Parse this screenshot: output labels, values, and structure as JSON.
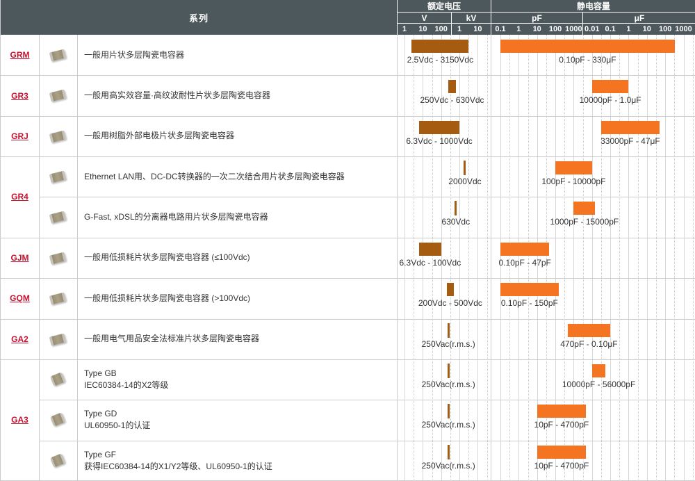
{
  "header": {
    "series": "系列",
    "rated_voltage": "额定电压",
    "capacitance": "静电容量"
  },
  "colors": {
    "header_bg": "#4d585c",
    "series_link": "#c8102e",
    "voltage_bar": "#a55c10",
    "capacitance_bar": "#f57421",
    "grid_major": "#d8d8d8",
    "grid_minor": "#cdcdcd",
    "border": "#cccccc",
    "text": "#333333"
  },
  "chart_data": {
    "type": "table",
    "title": "MLCC series selection chart: rated voltage and capacitance ranges (log scales)",
    "voltage_axis": {
      "scale": "log",
      "sections": [
        {
          "unit": "V",
          "multiplier_v": 1,
          "ticks": [
            "1",
            "10",
            "100"
          ]
        },
        {
          "unit": "kV",
          "multiplier_v": 1000,
          "ticks": [
            "1",
            "10"
          ]
        }
      ]
    },
    "capacitance_axis": {
      "scale": "log",
      "sections": [
        {
          "unit": "pF",
          "multiplier_pf": 1,
          "ticks": [
            "0.1",
            "1",
            "10",
            "100",
            "1000"
          ]
        },
        {
          "unit": "μF",
          "multiplier_pf": 1000000,
          "ticks": [
            "0.01",
            "0.1",
            "1",
            "10",
            "100",
            "1000"
          ]
        }
      ]
    },
    "groups": [
      {
        "series": "GRM",
        "chip": "cylinder",
        "rows": [
          {
            "description": [
              "一般用片状多层陶瓷电容器"
            ],
            "voltage_v": [
              2.5,
              3150
            ],
            "voltage_label": "2.5Vdc - 3150Vdc",
            "cap_pf": [
              0.1,
              330000000
            ],
            "cap_label": "0.10pF - 330μF"
          }
        ]
      },
      {
        "series": "GR3",
        "chip": "cylinder",
        "rows": [
          {
            "description": [
              "一般用高实效容量·高纹波耐性片状多层陶瓷电容器"
            ],
            "voltage_v": [
              250,
              630
            ],
            "voltage_label": "250Vdc - 630Vdc",
            "cap_pf": [
              10000,
              1000000
            ],
            "cap_label": "10000pF - 1.0μF"
          }
        ]
      },
      {
        "series": "GRJ",
        "chip": "cylinder",
        "rows": [
          {
            "description": [
              "一般用树脂外部电极片状多层陶瓷电容器"
            ],
            "voltage_v": [
              6.3,
              1000
            ],
            "voltage_label": "6.3Vdc - 1000Vdc",
            "cap_pf": [
              33000,
              47000000
            ],
            "cap_label": "33000pF - 47μF"
          }
        ]
      },
      {
        "series": "GR4",
        "chip": "cylinder",
        "rows": [
          {
            "description": [
              "Ethernet LAN用、DC-DC转换器的一次二次结合用片状多层陶瓷电容器"
            ],
            "voltage_v": [
              2000,
              2000
            ],
            "voltage_label": "2000Vdc",
            "cap_pf": [
              100,
              10000
            ],
            "cap_label": "100pF - 10000pF"
          },
          {
            "description": [
              "G-Fast, xDSL的分离器电路用片状多层陶瓷电容器"
            ],
            "voltage_v": [
              630,
              630
            ],
            "voltage_label": "630Vdc",
            "cap_pf": [
              1000,
              15000
            ],
            "cap_label": "1000pF - 15000pF"
          }
        ]
      },
      {
        "series": "GJM",
        "chip": "cylinder",
        "rows": [
          {
            "description": [
              "一般用低损耗片状多层陶瓷电容器 (≤100Vdc)"
            ],
            "voltage_v": [
              6.3,
              100
            ],
            "voltage_label": "6.3Vdc - 100Vdc",
            "cap_pf": [
              0.1,
              47
            ],
            "cap_label": "0.10pF - 47pF"
          }
        ]
      },
      {
        "series": "GQM",
        "chip": "cylinder",
        "rows": [
          {
            "description": [
              "一般用低损耗片状多层陶瓷电容器 (>100Vdc)"
            ],
            "voltage_v": [
              200,
              500
            ],
            "voltage_label": "200Vdc - 500Vdc",
            "cap_pf": [
              0.1,
              150
            ],
            "cap_label": "0.10pF - 150pF"
          }
        ]
      },
      {
        "series": "GA2",
        "chip": "cylinder",
        "rows": [
          {
            "description": [
              "一般用电气用品安全法标准片状多层陶瓷电容器"
            ],
            "voltage_v": [
              250,
              250
            ],
            "voltage_label": "250Vac(r.m.s.)",
            "cap_pf": [
              470,
              100000
            ],
            "cap_label": "470pF - 0.10μF"
          }
        ]
      },
      {
        "series": "GA3",
        "chip": "square",
        "rows": [
          {
            "description": [
              "Type GB",
              "IEC60384-14的X2等级"
            ],
            "voltage_v": [
              250,
              250
            ],
            "voltage_label": "250Vac(r.m.s.)",
            "cap_pf": [
              10000,
              56000
            ],
            "cap_label": "10000pF - 56000pF"
          },
          {
            "description": [
              "Type GD",
              "UL60950-1的认证"
            ],
            "voltage_v": [
              250,
              250
            ],
            "voltage_label": "250Vac(r.m.s.)",
            "cap_pf": [
              10,
              4700
            ],
            "cap_label": "10pF - 4700pF"
          },
          {
            "description": [
              "Type GF",
              "获得IEC60384-14的X1/Y2等级、UL60950-1的认证"
            ],
            "voltage_v": [
              250,
              250
            ],
            "voltage_label": "250Vac(r.m.s.)",
            "cap_pf": [
              10,
              4700
            ],
            "cap_label": "10pF - 4700pF"
          }
        ]
      }
    ]
  }
}
